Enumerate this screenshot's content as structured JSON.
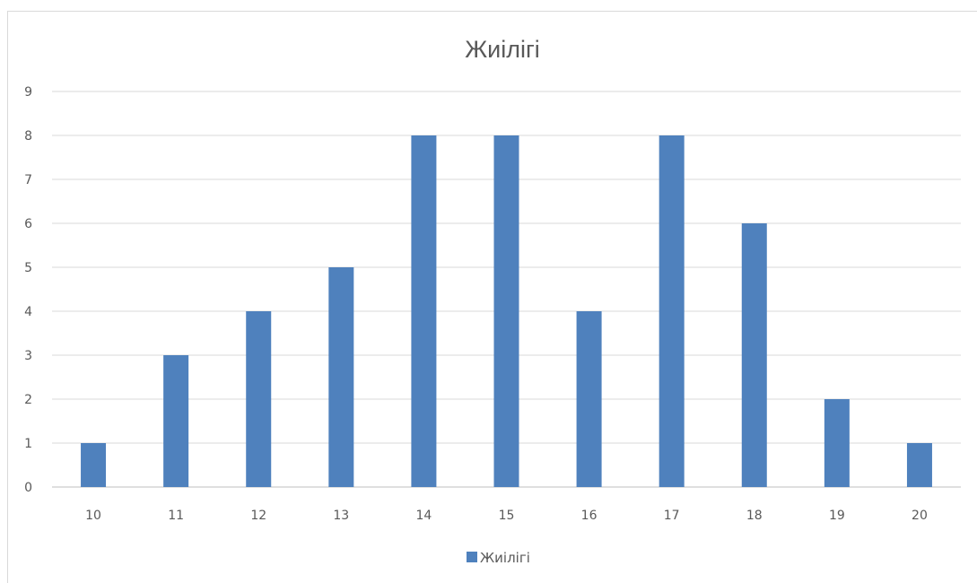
{
  "chart_data": {
    "type": "bar",
    "title": "Жиілігі",
    "xlabel": "",
    "ylabel": "",
    "categories": [
      "10",
      "11",
      "12",
      "13",
      "14",
      "15",
      "16",
      "17",
      "18",
      "19",
      "20"
    ],
    "series": [
      {
        "name": "Жиілігі",
        "values": [
          1,
          3,
          4,
          5,
          8,
          8,
          4,
          8,
          6,
          2,
          1
        ],
        "color": "#4f81bd"
      }
    ],
    "ylim": [
      0,
      9
    ],
    "yticks": [
      "0",
      "1",
      "2",
      "3",
      "4",
      "5",
      "6",
      "7",
      "8",
      "9"
    ],
    "grid": true,
    "legend": "bottom"
  }
}
